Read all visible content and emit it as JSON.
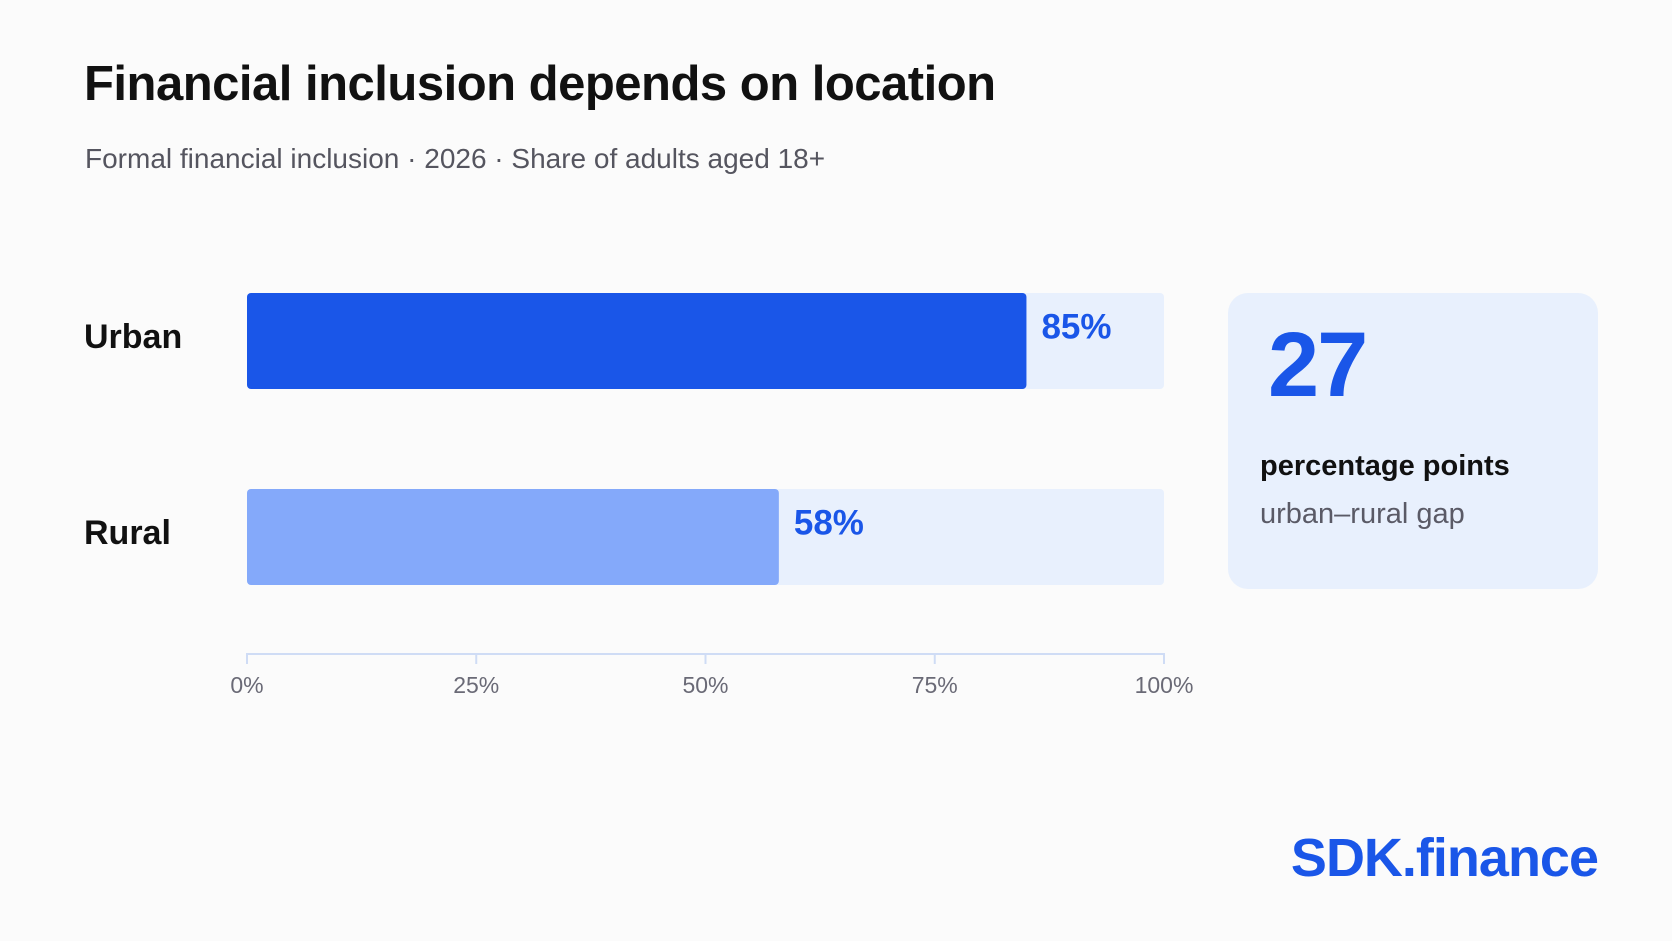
{
  "header": {
    "title": "Financial inclusion depends on location",
    "subtitle": "Formal financial inclusion · 2026 · Share of adults aged 18+"
  },
  "chart_data": {
    "type": "bar",
    "orientation": "horizontal",
    "categories": [
      "Urban",
      "Rural"
    ],
    "values": [
      85,
      58
    ],
    "value_labels": [
      "85%",
      "58%"
    ],
    "xlim": [
      0,
      100
    ],
    "xticks": [
      0,
      25,
      50,
      75,
      100
    ],
    "xtick_labels": [
      "0%",
      "25%",
      "50%",
      "75%",
      "100%"
    ],
    "grid": false,
    "colors": {
      "Urban": "#1a56e8",
      "Rural": "#84a9fa",
      "track": "#e8f0fd",
      "axis": "#cfdcf5"
    }
  },
  "gap_card": {
    "value": "27",
    "unit": "percentage points",
    "description": "urban–rural gap"
  },
  "brand": {
    "logo_text": "SDK.finance",
    "accent": "#1a56e8"
  }
}
